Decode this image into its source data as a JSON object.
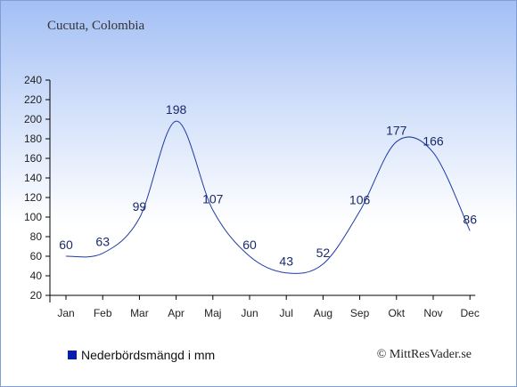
{
  "subtitle": "Cucuta, Colombia",
  "legend_label": "Nederbördsmängd i mm",
  "copyright": "© MittResVader.se",
  "colors": {
    "line": "#1f3ba6",
    "legend_swatch": "#0a1fa8",
    "label": "#1a2a6a"
  },
  "chart_data": {
    "type": "line",
    "categories": [
      "Jan",
      "Feb",
      "Mar",
      "Apr",
      "Maj",
      "Jun",
      "Jul",
      "Aug",
      "Sep",
      "Okt",
      "Nov",
      "Dec"
    ],
    "series": [
      {
        "name": "Nederbördsmängd i mm",
        "values": [
          60,
          63,
          99,
          198,
          107,
          60,
          43,
          52,
          106,
          177,
          166,
          86
        ]
      }
    ],
    "data_labels": [
      "60",
      "63",
      "99",
      "198",
      "107",
      "60",
      "43",
      "52",
      "106",
      "177",
      "166",
      "86"
    ],
    "ylim": [
      20,
      240
    ],
    "yticks": [
      20,
      40,
      60,
      80,
      100,
      120,
      140,
      160,
      180,
      200,
      220,
      240
    ],
    "grid": false,
    "legend_position": "bottom-left"
  }
}
